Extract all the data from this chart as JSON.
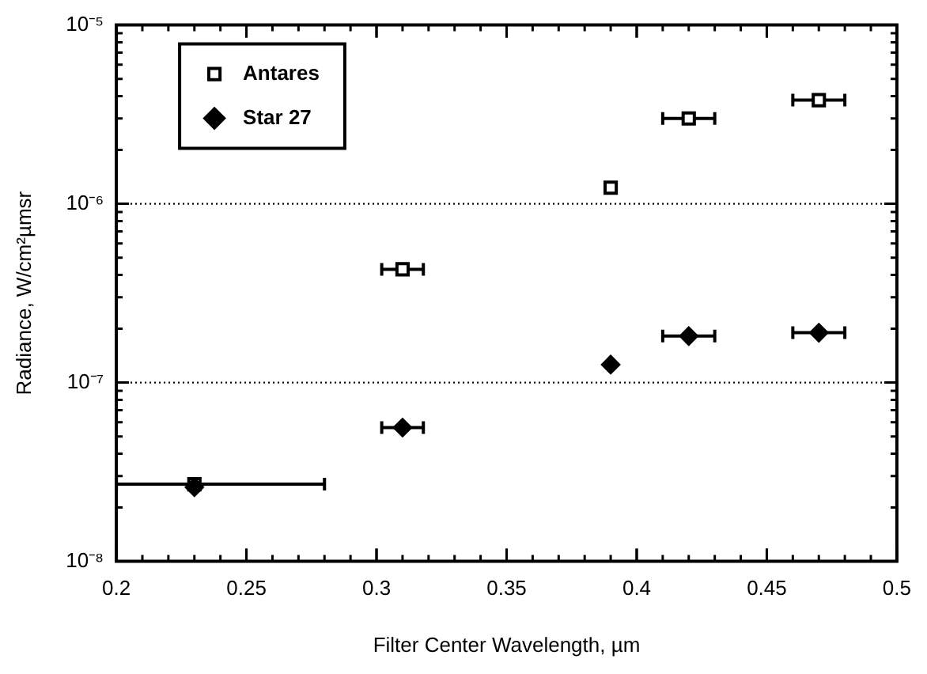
{
  "chart_data": {
    "type": "scatter",
    "xlabel": "Filter Center Wavelength, µm",
    "ylabel": "Radiance, W/cm²µmsr",
    "xlim": [
      0.2,
      0.5
    ],
    "xticks": [
      0.2,
      0.25,
      0.3,
      0.35,
      0.4,
      0.45,
      0.5
    ],
    "ylim": [
      1e-08,
      1e-05
    ],
    "yticks": [
      {
        "value": 1e-08,
        "label": "10⁻⁸"
      },
      {
        "value": 1e-07,
        "label": "10⁻⁷"
      },
      {
        "value": 1e-06,
        "label": "10⁻⁶"
      },
      {
        "value": 1e-05,
        "label": "10⁻⁵"
      }
    ],
    "log": "y",
    "grid": "y",
    "line_style": "dotted",
    "legend": "top left",
    "series": [
      {
        "name": "Antares",
        "color": "#000000",
        "marker": "square",
        "x": [
          0.23,
          0.31,
          0.39,
          0.42,
          0.47
        ],
        "values": [
          2.7e-08,
          4.3e-07,
          1.23e-06,
          3e-06,
          3.8e-06
        ],
        "xerrors": [
          [
            0.2,
            0.28
          ],
          0.008,
          null,
          0.01,
          0.01
        ]
      },
      {
        "name": "Star 27",
        "color": "#000000",
        "marker": "diamond",
        "x": [
          0.23,
          0.31,
          0.39,
          0.42,
          0.47
        ],
        "values": [
          2.6e-08,
          5.6e-08,
          1.26e-07,
          1.82e-07,
          1.9e-07
        ],
        "xerrors": [
          null,
          0.008,
          null,
          0.01,
          0.01
        ]
      }
    ]
  }
}
